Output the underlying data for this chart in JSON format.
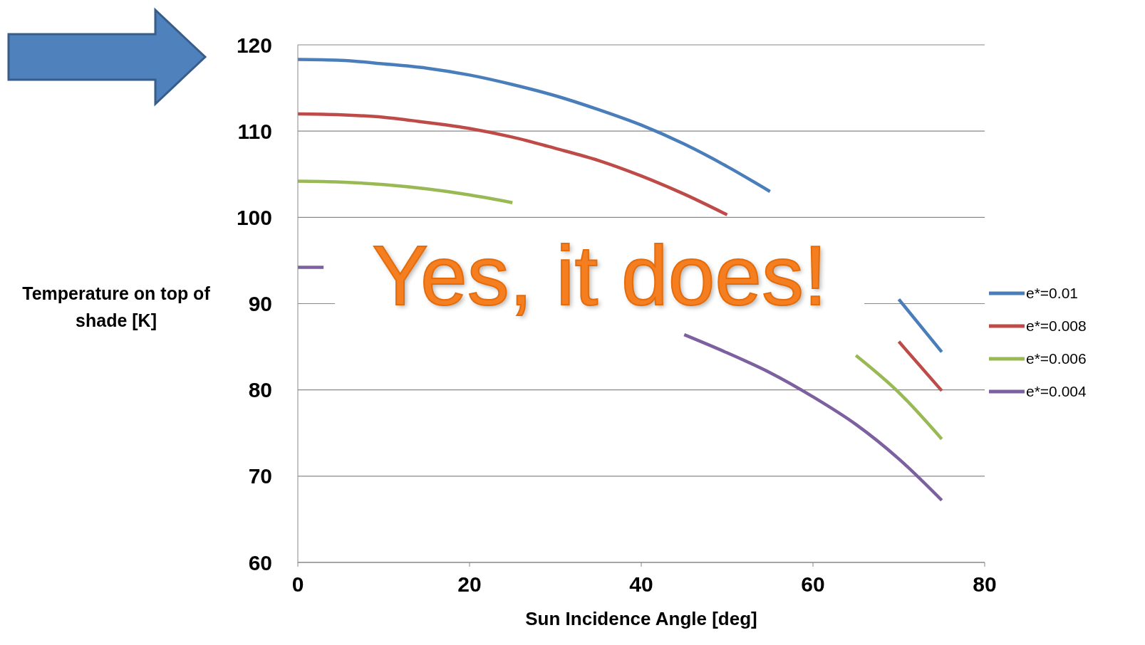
{
  "chart_data": {
    "type": "line",
    "xlabel": "Sun Incidence Angle [deg]",
    "ylabel": "Temperature on top of shade [K]",
    "x": [
      0,
      5,
      10,
      15,
      20,
      25,
      30,
      35,
      40,
      45,
      50,
      55,
      60,
      65,
      70,
      75
    ],
    "series": [
      {
        "name": "e*=0.01",
        "color": "#4a7ebb",
        "values": [
          118.3,
          118.2,
          117.8,
          117.3,
          116.5,
          115.4,
          114.1,
          112.5,
          110.7,
          108.5,
          105.9,
          103.0,
          null,
          null,
          90.5,
          84.4
        ]
      },
      {
        "name": "e*=0.008",
        "color": "#be4b48",
        "values": [
          112,
          111.9,
          111.6,
          111.0,
          110.3,
          109.3,
          108.0,
          106.6,
          104.8,
          102.7,
          100.3,
          null,
          null,
          null,
          85.6,
          79.9
        ]
      },
      {
        "name": "e*=0.006",
        "color": "#98b954",
        "values": [
          104.2,
          104.1,
          103.8,
          103.3,
          102.6,
          101.7,
          null,
          null,
          null,
          null,
          null,
          null,
          null,
          84.0,
          79.7,
          74.3
        ]
      },
      {
        "name": "e*=0.004",
        "color": "#7d60a0",
        "x": [
          0,
          3,
          5,
          45,
          50,
          55,
          60,
          65,
          70,
          75
        ],
        "values": [
          94.2,
          94.2,
          null,
          86.4,
          84.3,
          82.0,
          79.2,
          76.0,
          72.0,
          67.2
        ]
      }
    ],
    "xlim": [
      0,
      80
    ],
    "xticks": [
      0,
      20,
      40,
      60,
      80
    ],
    "ylim": [
      60,
      120
    ],
    "yticks": [
      60,
      70,
      80,
      90,
      100,
      110,
      120
    ],
    "grid": "y",
    "legend": "right",
    "marker": "none",
    "line_style": "solid",
    "annotations": [
      "Yes, it does!"
    ]
  }
}
